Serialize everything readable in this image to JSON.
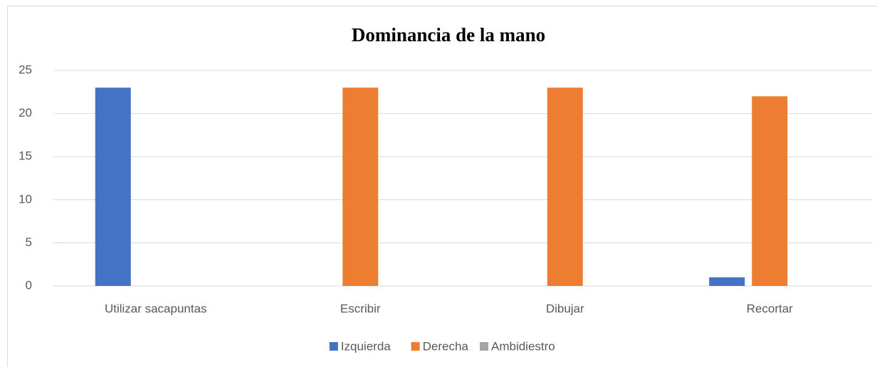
{
  "chart_data": {
    "type": "bar",
    "title": "Dominancia de la mano",
    "categories": [
      "Utilizar sacapuntas",
      "Escribir",
      "Dibujar",
      "Recortar"
    ],
    "series": [
      {
        "name": "Izquierda",
        "color": "#4472c4",
        "values": [
          23,
          0,
          0,
          1
        ]
      },
      {
        "name": "Derecha",
        "color": "#ed7d31",
        "values": [
          0,
          23,
          23,
          22
        ]
      },
      {
        "name": "Ambidiestro",
        "color": "#a5a5a5",
        "values": [
          0,
          0,
          0,
          0
        ]
      }
    ],
    "ylim": [
      0,
      25
    ],
    "yticks": [
      0,
      5,
      10,
      15,
      20,
      25
    ],
    "grid": true,
    "legend": "bottom"
  }
}
